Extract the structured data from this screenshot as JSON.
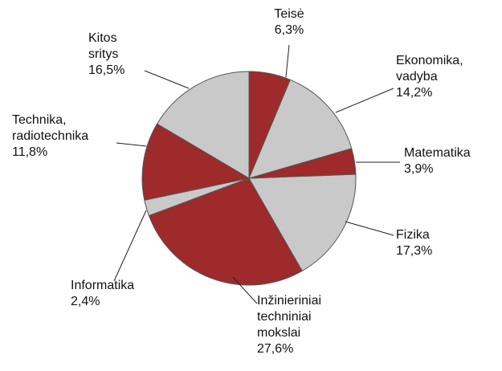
{
  "chart_data": {
    "type": "pie",
    "categories": [
      "Teisė",
      "Ekonomika, vadyba",
      "Matematika",
      "Fizika",
      "Inžinieriniai techniniai mokslai",
      "Informatika",
      "Technika, radiotechnika",
      "Kitos sritys"
    ],
    "values": [
      6.3,
      14.2,
      3.9,
      17.3,
      27.6,
      2.4,
      11.8,
      16.5
    ],
    "value_labels": [
      "6,3%",
      "14,2%",
      "3,9%",
      "17,3%",
      "27,6%",
      "2,4%",
      "11,8%",
      "16,5%"
    ],
    "colors": [
      "#9e2a2b",
      "#c9c9c9",
      "#9e2a2b",
      "#c9c9c9",
      "#9e2a2b",
      "#c9c9c9",
      "#9e2a2b",
      "#c9c9c9"
    ]
  }
}
